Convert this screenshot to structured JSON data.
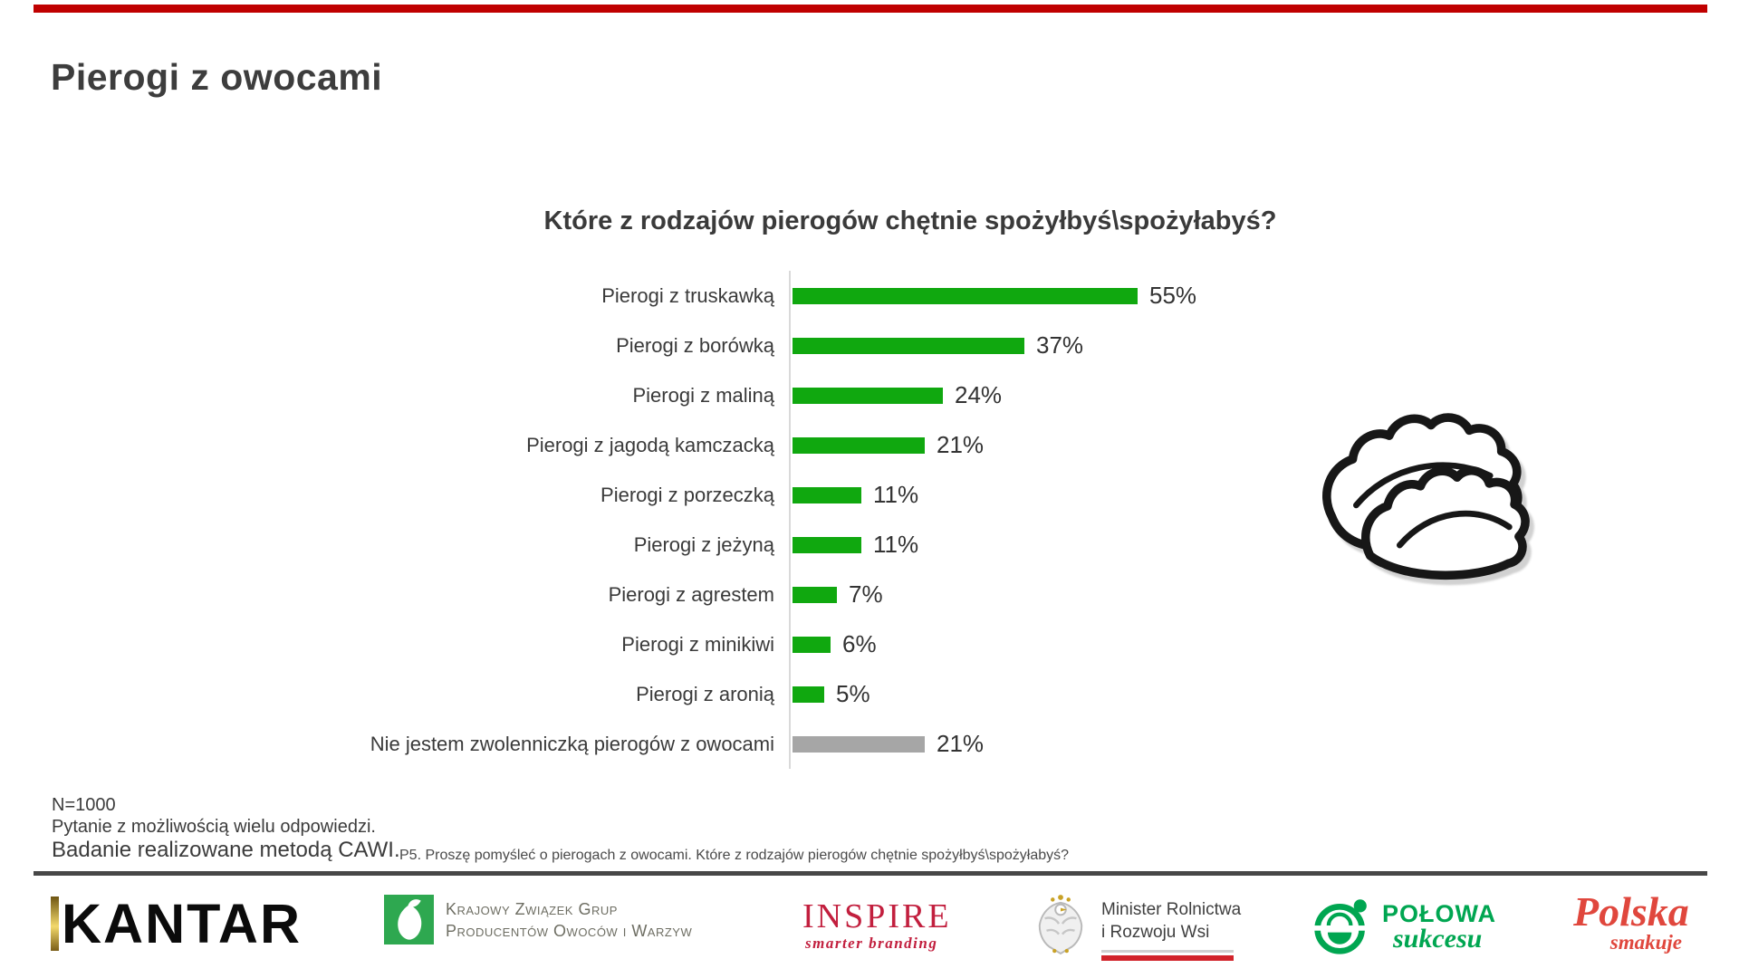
{
  "page": {
    "title": "Pierogi z owocami"
  },
  "accent": {
    "top_bar_color": "#c00000",
    "separator_color": "#474747"
  },
  "chart_data": {
    "type": "bar",
    "orientation": "horizontal",
    "title": "Które z rodzajów pierogów chętnie spożyłbyś\\spożyłabyś?",
    "categories": [
      "Pierogi z truskawką",
      "Pierogi z borówką",
      "Pierogi z maliną",
      "Pierogi z jagodą kamczacką",
      "Pierogi z porzeczką",
      "Pierogi z jeżyną",
      "Pierogi z agrestem",
      "Pierogi z minikiwi",
      "Pierogi z aronią",
      "Nie jestem zwolenniczką pierogów z owocami"
    ],
    "values": [
      55,
      37,
      24,
      21,
      11,
      11,
      7,
      6,
      5,
      21
    ],
    "unit": "%",
    "colors": [
      "#10a80f",
      "#10a80f",
      "#10a80f",
      "#10a80f",
      "#10a80f",
      "#10a80f",
      "#10a80f",
      "#10a80f",
      "#10a80f",
      "#a6a6a6"
    ],
    "value_labels": true,
    "xlim": [
      0,
      58
    ],
    "axis_line_color": "#d9d9d9",
    "legend": "none",
    "grid": "off"
  },
  "notes": {
    "sample": "N=1000",
    "multi_answer": "Pytanie z możliwością wielu odpowiedzi.",
    "method": "Badanie realizowane metodą CAWI.",
    "question_ref": "P5. Proszę pomyśleć o pierogach z owocami. Które z rodzajów pierogów chętnie spożyłbyś\\spożyłabyś?"
  },
  "logos": {
    "kantar": {
      "text": "KANTAR"
    },
    "kzgpow": {
      "line1": "Krajowy Związek Grup",
      "line2": "Producentów Owoców i Warzyw"
    },
    "inspire": {
      "text": "INSPIRE",
      "tagline": "smarter branding"
    },
    "ministry": {
      "line1": "Minister Rolnictwa",
      "line2": "i Rozwoju Wsi"
    },
    "polowa": {
      "text": "POŁOWA",
      "tagline": "sukcesu"
    },
    "polska_smakuje": {
      "text": "Polska",
      "tagline": "smakuje"
    }
  }
}
